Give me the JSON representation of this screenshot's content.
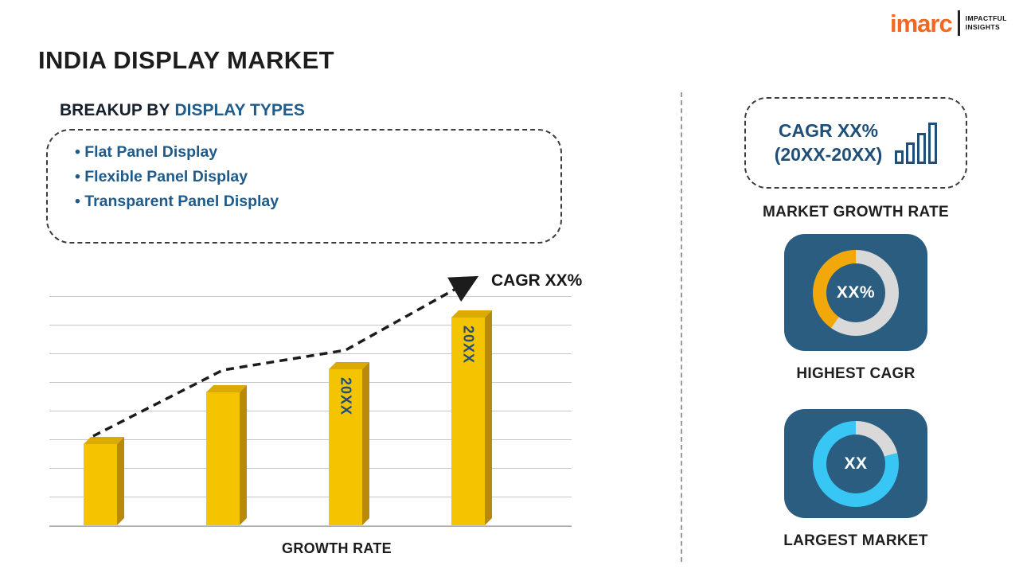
{
  "title": "INDIA DISPLAY MARKET",
  "logo": {
    "brand": "imarc",
    "tagline_line1": "IMPACTFUL",
    "tagline_line2": "INSIGHTS"
  },
  "breakup": {
    "heading_prefix": "BREAKUP BY",
    "heading_highlight": "DISPLAY TYPES",
    "items": [
      "Flat Panel Display",
      "Flexible Panel Display",
      "Transparent Panel Display"
    ]
  },
  "chart_data": {
    "type": "bar",
    "title": "",
    "categories": [
      "",
      "",
      "20XX",
      "20XX"
    ],
    "values": [
      28,
      46,
      54,
      72
    ],
    "ylim": [
      0,
      80
    ],
    "xlabel": "GROWTH RATE",
    "ylabel": "",
    "grid": true,
    "legend": "none",
    "bar_color": "#F5C400",
    "trend_annotation": "CAGR XX%",
    "trend_style": "dashed-ascending-arrow"
  },
  "sidebar": {
    "growth_box": {
      "line1": "CAGR XX%",
      "line2": "(20XX-20XX)",
      "icon": "ascending-bars-icon"
    },
    "market_growth_label": "MARKET GROWTH RATE",
    "highest_cagr": {
      "value": "XX%",
      "label": "HIGHEST CAGR",
      "segment_color": "#F2A80A"
    },
    "largest_market": {
      "value": "XX",
      "label": "LARGEST MARKET",
      "segment_color": "#38C6F4"
    }
  },
  "colors": {
    "heading_blue": "#1F5C8B",
    "list_text_blue": "#1E5A8A",
    "card_bg": "#2A5D80",
    "bar_yellow": "#F5C400",
    "donut_track": "#D9D9D9",
    "logo_orange": "#F26822",
    "trend_line": "#1C1C1C"
  }
}
